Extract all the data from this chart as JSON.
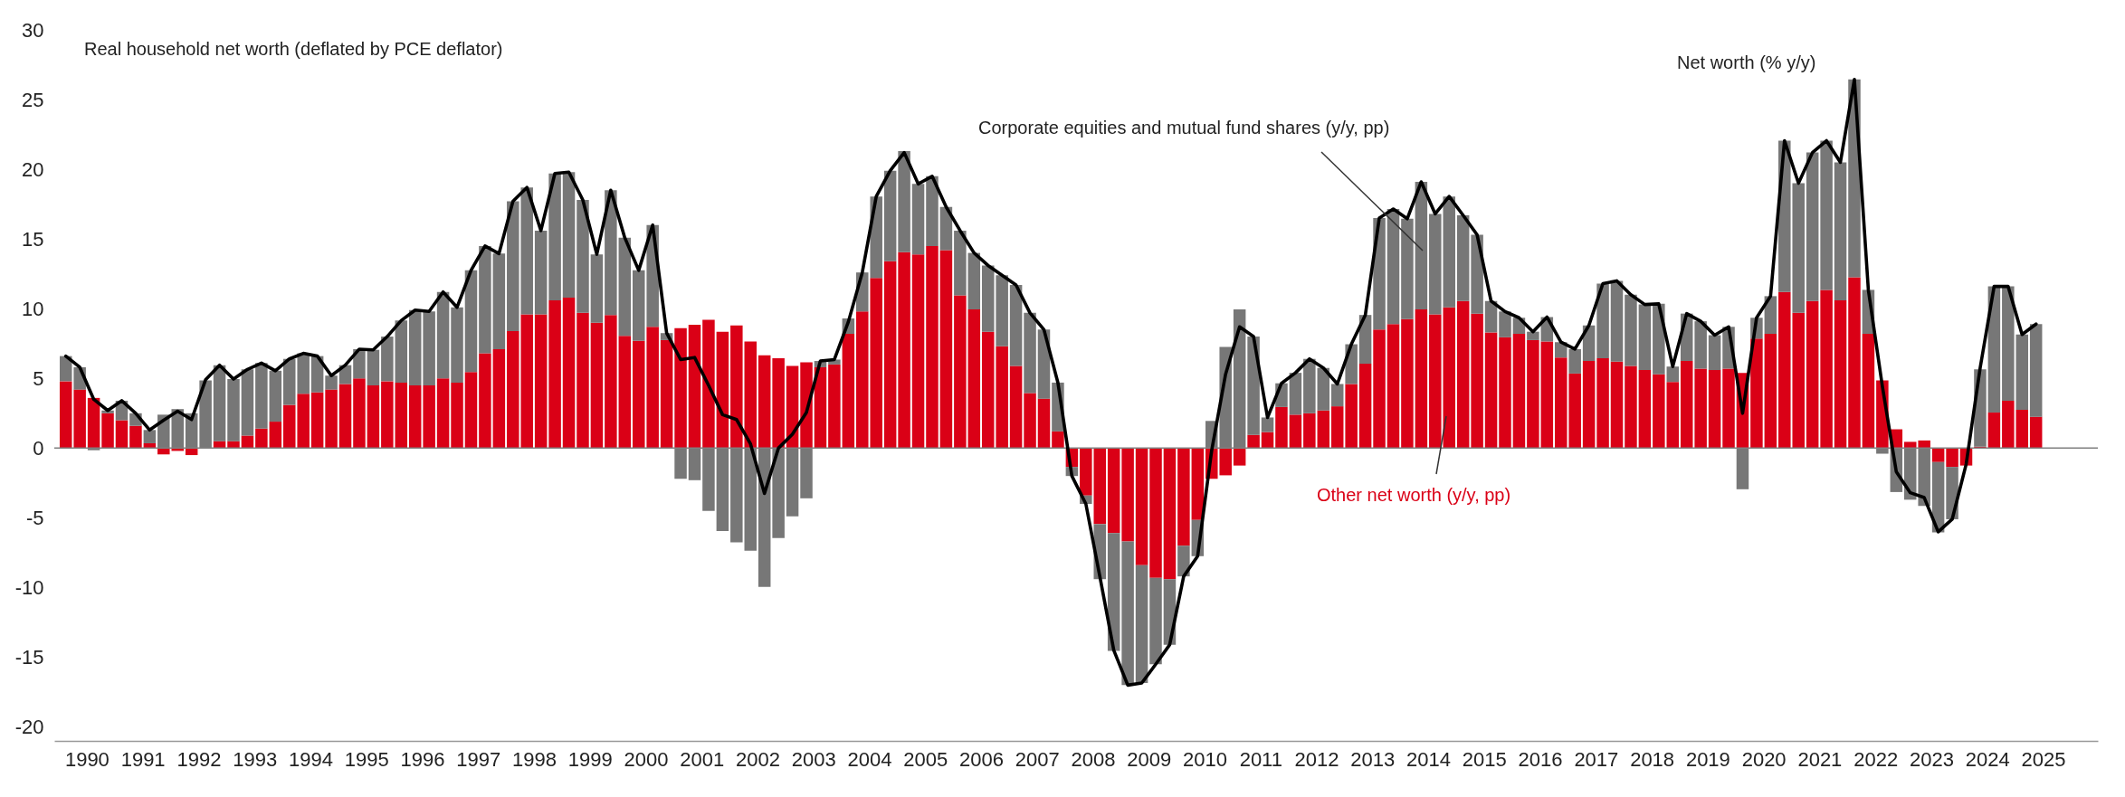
{
  "chart_data": {
    "type": "bar",
    "title": "Real household net worth (deflated by PCE deflator)",
    "stacked": true,
    "x": [
      1990.125,
      1990.375,
      1990.625,
      1990.875,
      1991.125,
      1991.375,
      1991.625,
      1991.875,
      1992.125,
      1992.375,
      1992.625,
      1992.875,
      1993.125,
      1993.375,
      1993.625,
      1993.875,
      1994.125,
      1994.375,
      1994.625,
      1994.875,
      1995.125,
      1995.375,
      1995.625,
      1995.875,
      1996.125,
      1996.375,
      1996.625,
      1996.875,
      1997.125,
      1997.375,
      1997.625,
      1997.875,
      1998.125,
      1998.375,
      1998.625,
      1998.875,
      1999.125,
      1999.375,
      1999.625,
      1999.875,
      2000.125,
      2000.375,
      2000.625,
      2000.875,
      2001.125,
      2001.375,
      2001.625,
      2001.875,
      2002.125,
      2002.375,
      2002.625,
      2002.875,
      2003.125,
      2003.375,
      2003.625,
      2003.875,
      2004.125,
      2004.375,
      2004.625,
      2004.875,
      2005.125,
      2005.375,
      2005.625,
      2005.875,
      2006.125,
      2006.375,
      2006.625,
      2006.875,
      2007.125,
      2007.375,
      2007.625,
      2007.875,
      2008.125,
      2008.375,
      2008.625,
      2008.875,
      2009.125,
      2009.375,
      2009.625,
      2009.875,
      2010.125,
      2010.375,
      2010.625,
      2010.875,
      2011.125,
      2011.375,
      2011.625,
      2011.875,
      2012.125,
      2012.375,
      2012.625,
      2012.875,
      2013.125,
      2013.375,
      2013.625,
      2013.875,
      2014.125,
      2014.375,
      2014.625,
      2014.875,
      2015.125,
      2015.375,
      2015.625,
      2015.875,
      2016.125,
      2016.375,
      2016.625,
      2016.875,
      2017.125,
      2017.375,
      2017.625,
      2017.875,
      2018.125,
      2018.375,
      2018.625,
      2018.875,
      2019.125,
      2019.375,
      2019.625,
      2019.875,
      2020.125,
      2020.375,
      2020.625,
      2020.875,
      2021.125,
      2021.375,
      2021.625,
      2021.875,
      2022.125,
      2022.375,
      2022.625,
      2022.875,
      2023.125,
      2023.375,
      2023.625,
      2023.875,
      2024.125,
      2024.375,
      2024.625,
      2024.875,
      2025.125,
      2025.375
    ],
    "xlim": [
      1990,
      2026.4
    ],
    "xticks": [
      {
        "value": 1990.5,
        "label": "1990"
      },
      {
        "value": 1991.5,
        "label": "1991"
      },
      {
        "value": 1992.5,
        "label": "1992"
      },
      {
        "value": 1993.5,
        "label": "1993"
      },
      {
        "value": 1994.5,
        "label": "1994"
      },
      {
        "value": 1995.5,
        "label": "1995"
      },
      {
        "value": 1996.5,
        "label": "1996"
      },
      {
        "value": 1997.5,
        "label": "1997"
      },
      {
        "value": 1998.5,
        "label": "1998"
      },
      {
        "value": 1999.5,
        "label": "1999"
      },
      {
        "value": 2000.5,
        "label": "2000"
      },
      {
        "value": 2001.5,
        "label": "2001"
      },
      {
        "value": 2002.5,
        "label": "2002"
      },
      {
        "value": 2003.5,
        "label": "2003"
      },
      {
        "value": 2004.5,
        "label": "2004"
      },
      {
        "value": 2005.5,
        "label": "2005"
      },
      {
        "value": 2006.5,
        "label": "2006"
      },
      {
        "value": 2007.5,
        "label": "2007"
      },
      {
        "value": 2008.5,
        "label": "2008"
      },
      {
        "value": 2009.5,
        "label": "2009"
      },
      {
        "value": 2010.5,
        "label": "2010"
      },
      {
        "value": 2011.5,
        "label": "2011"
      },
      {
        "value": 2012.5,
        "label": "2012"
      },
      {
        "value": 2013.5,
        "label": "2013"
      },
      {
        "value": 2014.5,
        "label": "2014"
      },
      {
        "value": 2015.5,
        "label": "2015"
      },
      {
        "value": 2016.5,
        "label": "2016"
      },
      {
        "value": 2017.5,
        "label": "2017"
      },
      {
        "value": 2018.5,
        "label": "2018"
      },
      {
        "value": 2019.5,
        "label": "2019"
      },
      {
        "value": 2020.5,
        "label": "2020"
      },
      {
        "value": 2021.5,
        "label": "2021"
      },
      {
        "value": 2022.5,
        "label": "2022"
      },
      {
        "value": 2023.5,
        "label": "2023"
      },
      {
        "value": 2024.5,
        "label": "2024"
      },
      {
        "value": 2025.5,
        "label": "2025"
      }
    ],
    "ylim": [
      -21,
      30
    ],
    "yticks": [
      -20,
      -15,
      -10,
      -5,
      0,
      5,
      10,
      15,
      20,
      25,
      30
    ],
    "grid": false,
    "legend": false,
    "ref_lines": [
      {
        "axis": "y",
        "value": 0,
        "color": "#808080"
      }
    ],
    "series": [
      {
        "name": "Other net worth (y/y, pp)",
        "color": "#da0016",
        "values": [
          4.8,
          4.2,
          3.6,
          2.5,
          2.0,
          1.6,
          0.35,
          -0.45,
          -0.2,
          -0.5,
          null,
          0.5,
          0.5,
          0.9,
          1.4,
          1.9,
          3.1,
          3.9,
          4.0,
          4.2,
          4.6,
          5.0,
          4.5,
          4.8,
          4.7,
          4.5,
          4.5,
          5.0,
          4.7,
          5.45,
          6.8,
          7.1,
          8.4,
          9.6,
          9.6,
          10.6,
          10.8,
          9.7,
          9.0,
          9.55,
          8.05,
          7.7,
          8.7,
          7.75,
          8.6,
          8.85,
          9.2,
          8.35,
          8.8,
          7.65,
          6.65,
          6.45,
          5.9,
          6.15,
          5.8,
          6.0,
          8.2,
          9.8,
          12.2,
          13.4,
          14.05,
          13.9,
          14.5,
          14.2,
          10.95,
          9.95,
          8.35,
          7.3,
          5.9,
          3.95,
          3.55,
          1.2,
          -1.35,
          -3.4,
          -5.45,
          -6.1,
          -6.7,
          -8.4,
          -9.3,
          -9.4,
          -7.0,
          -5.15,
          -2.2,
          -1.95,
          -1.25,
          0.95,
          1.15,
          2.95,
          2.4,
          2.5,
          2.7,
          3.0,
          4.6,
          6.05,
          8.5,
          8.9,
          9.25,
          9.95,
          9.6,
          10.1,
          10.55,
          9.65,
          8.3,
          7.95,
          8.2,
          7.75,
          7.65,
          6.5,
          5.35,
          6.25,
          6.45,
          6.2,
          5.9,
          5.6,
          5.3,
          4.75,
          6.25,
          5.7,
          5.6,
          5.7,
          5.4,
          7.85,
          8.2,
          11.2,
          9.7,
          10.55,
          11.35,
          10.6,
          12.25,
          8.2,
          4.85,
          1.35,
          0.45,
          0.55,
          -1.0,
          -1.35,
          -1.25,
          0.1,
          2.55,
          3.4,
          2.75,
          2.25
        ]
      },
      {
        "name": "Corporate equities and mutual fund shares (y/y, pp)",
        "color": "#777777",
        "values": [
          1.8,
          1.6,
          -0.15,
          0.2,
          1.4,
          0.9,
          0.95,
          2.4,
          2.8,
          2.5,
          4.85,
          5.45,
          4.45,
          4.75,
          4.7,
          3.65,
          3.3,
          2.9,
          2.6,
          1.0,
          1.35,
          2.1,
          2.55,
          3.2,
          4.45,
          5.4,
          5.3,
          6.2,
          5.4,
          7.3,
          7.7,
          6.85,
          9.3,
          9.1,
          6.0,
          9.1,
          9.0,
          8.1,
          4.9,
          8.95,
          7.05,
          5.05,
          7.3,
          0.5,
          -2.2,
          -2.3,
          -4.5,
          -5.95,
          -6.75,
          -7.35,
          -9.95,
          -6.45,
          -4.9,
          -3.6,
          0.45,
          0.35,
          1.1,
          2.8,
          5.85,
          6.5,
          7.25,
          5.05,
          5.0,
          3.1,
          4.65,
          4.05,
          4.75,
          5.1,
          5.8,
          5.75,
          4.95,
          3.5,
          -0.65,
          -0.6,
          -3.95,
          -8.45,
          -10.3,
          -8.45,
          -6.2,
          -4.7,
          -2.2,
          -2.6,
          1.95,
          7.25,
          9.95,
          7.05,
          1.05,
          1.7,
          3.0,
          3.9,
          3.05,
          1.6,
          2.85,
          3.5,
          8.0,
          8.25,
          7.2,
          9.15,
          7.2,
          7.95,
          6.15,
          5.65,
          2.25,
          1.85,
          1.15,
          0.6,
          1.75,
          1.1,
          1.75,
          2.55,
          5.35,
          5.8,
          5.1,
          4.7,
          5.05,
          1.1,
          3.4,
          3.4,
          2.5,
          3.0,
          -2.95,
          1.5,
          2.7,
          10.85,
          9.3,
          10.65,
          10.7,
          9.9,
          14.2,
          3.15,
          -0.4,
          -3.15,
          -3.7,
          -4.15,
          -5.05,
          -3.75,
          null,
          5.55,
          9.05,
          8.2,
          5.4,
          6.65
        ]
      },
      {
        "name": "Net worth (% y/y)",
        "type": "line",
        "color": "#000000",
        "values": [
          6.6,
          5.8,
          3.5,
          2.7,
          3.4,
          2.5,
          1.3,
          2.0,
          2.65,
          2.05,
          4.9,
          5.95,
          4.95,
          5.65,
          6.1,
          5.55,
          6.4,
          6.8,
          6.6,
          5.2,
          5.95,
          7.1,
          7.05,
          8.0,
          9.15,
          9.9,
          9.8,
          11.2,
          10.1,
          12.75,
          14.5,
          13.95,
          17.7,
          18.7,
          15.6,
          19.7,
          19.8,
          17.8,
          13.9,
          18.5,
          15.1,
          12.75,
          16.0,
          8.25,
          6.35,
          6.5,
          4.5,
          2.4,
          2.05,
          0.3,
          -3.25,
          0.0,
          1.0,
          2.55,
          6.25,
          6.35,
          9.05,
          12.6,
          18.05,
          19.9,
          21.2,
          18.95,
          19.5,
          17.3,
          15.6,
          14.0,
          13.1,
          12.4,
          11.7,
          9.7,
          8.5,
          4.7,
          -2.0,
          -4.0,
          -9.2,
          -14.5,
          -17.0,
          -16.85,
          -15.5,
          -14.1,
          -9.2,
          -7.75,
          -0.2,
          5.3,
          8.7,
          8.0,
          2.2,
          4.65,
          5.4,
          6.4,
          5.75,
          4.6,
          7.45,
          9.55,
          16.5,
          17.15,
          16.45,
          19.1,
          16.8,
          18.05,
          16.7,
          15.3,
          10.55,
          9.8,
          9.35,
          8.35,
          9.4,
          7.6,
          7.1,
          8.8,
          11.8,
          12.0,
          11.0,
          10.3,
          10.35,
          5.85,
          9.65,
          9.1,
          8.1,
          8.7,
          2.5,
          9.35,
          10.9,
          22.05,
          19.0,
          21.2,
          22.05,
          20.5,
          26.45,
          11.35,
          4.45,
          -1.7,
          -3.2,
          -3.55,
          -6.0,
          -5.1,
          -1.15,
          5.75,
          11.6,
          11.6,
          8.15,
          8.9
        ]
      }
    ]
  }
}
